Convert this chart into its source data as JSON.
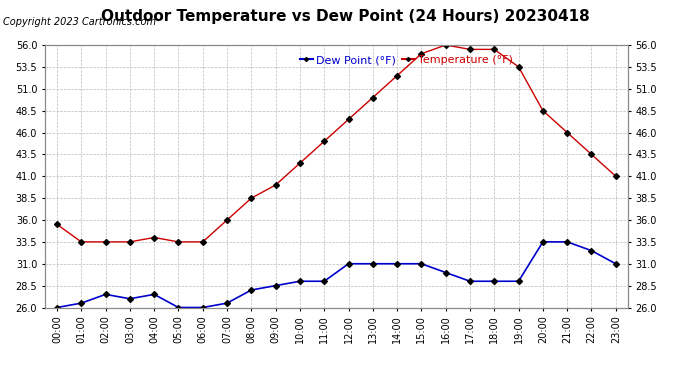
{
  "title": "Outdoor Temperature vs Dew Point (24 Hours) 20230418",
  "copyright": "Copyright 2023 Cartronics.com",
  "legend_dew": "Dew Point (°F)",
  "legend_temp": "Temperature (°F)",
  "hours": [
    "00:00",
    "01:00",
    "02:00",
    "03:00",
    "04:00",
    "05:00",
    "06:00",
    "07:00",
    "08:00",
    "09:00",
    "10:00",
    "11:00",
    "12:00",
    "13:00",
    "14:00",
    "15:00",
    "16:00",
    "17:00",
    "18:00",
    "19:00",
    "20:00",
    "21:00",
    "22:00",
    "23:00"
  ],
  "temperature": [
    35.5,
    33.5,
    33.5,
    33.5,
    34.0,
    33.5,
    33.5,
    36.0,
    38.5,
    40.0,
    42.5,
    45.0,
    47.5,
    50.0,
    52.5,
    55.0,
    56.0,
    55.5,
    55.5,
    53.5,
    48.5,
    46.0,
    43.5,
    41.0
  ],
  "dew_point": [
    26.0,
    26.5,
    27.5,
    27.0,
    27.5,
    26.0,
    26.0,
    26.5,
    28.0,
    28.5,
    29.0,
    29.0,
    31.0,
    31.0,
    31.0,
    31.0,
    30.0,
    29.0,
    29.0,
    29.0,
    33.5,
    33.5,
    32.5,
    31.0
  ],
  "temp_color": "#cc0000",
  "dew_color": "#0000cc",
  "marker": "D",
  "marker_size": 3,
  "ylim_min": 26.0,
  "ylim_max": 56.0,
  "yticks": [
    26.0,
    28.5,
    31.0,
    33.5,
    36.0,
    38.5,
    41.0,
    43.5,
    46.0,
    48.5,
    51.0,
    53.5,
    56.0
  ],
  "background_color": "#ffffff",
  "grid_color": "#bbbbbb",
  "title_fontsize": 11,
  "copyright_fontsize": 7,
  "legend_fontsize": 8,
  "tick_fontsize": 7
}
